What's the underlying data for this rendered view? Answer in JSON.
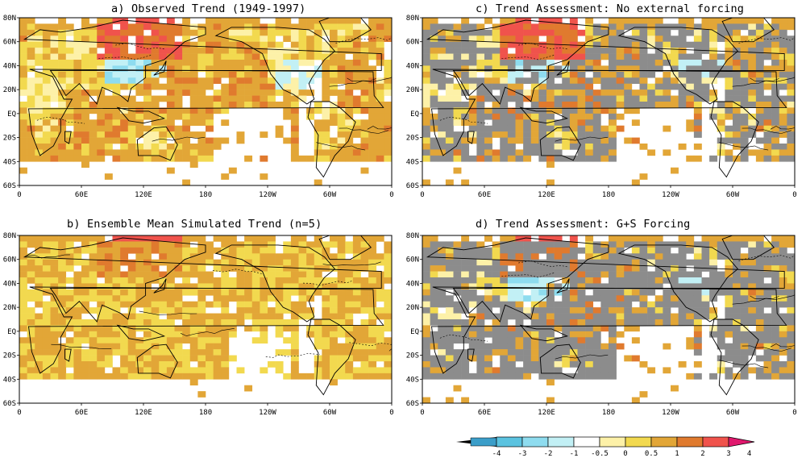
{
  "panels": [
    {
      "id": "a",
      "title": "a) Observed Trend (1949-1997)",
      "style": "observed"
    },
    {
      "id": "c",
      "title": "c) Trend Assessment: No external forcing",
      "style": "noforcing"
    },
    {
      "id": "b",
      "title": "b) Ensemble Mean Simulated Trend (n=5)",
      "style": "ensemble"
    },
    {
      "id": "d",
      "title": "d) Trend Assessment:  G+S Forcing",
      "style": "gsforcing"
    }
  ],
  "axes": {
    "lat_labels": [
      "80N",
      "60N",
      "40N",
      "20N",
      "EQ",
      "20S",
      "40S",
      "60S"
    ],
    "lon_labels": [
      "0",
      "60E",
      "120E",
      "180",
      "120W",
      "60W",
      "0"
    ]
  },
  "colorbar": {
    "labels": [
      "-4",
      "-3",
      "-2",
      "-1",
      "-0.5",
      "0",
      "0.5",
      "1",
      "2",
      "3",
      "4"
    ],
    "colors": [
      "#3b9ec9",
      "#5bc3e0",
      "#8edcef",
      "#c2f0f5",
      "#ffffff",
      "#fdf1a8",
      "#f2d94f",
      "#e2a637",
      "#e07a2e",
      "#f0534c",
      "#e0186e"
    ]
  },
  "map_colors": {
    "land_outline": "#000000",
    "no_data": "#ffffff",
    "insignificant": "#8c8c8c",
    "ocean_warm": "#e2a637",
    "moderate": "#f2d94f",
    "mild": "#fdf1a8",
    "strong": "#e07a2e",
    "hot": "#f0534c",
    "extreme": "#e0186e",
    "cool": "#c2f0f5",
    "cold": "#8edcef"
  }
}
